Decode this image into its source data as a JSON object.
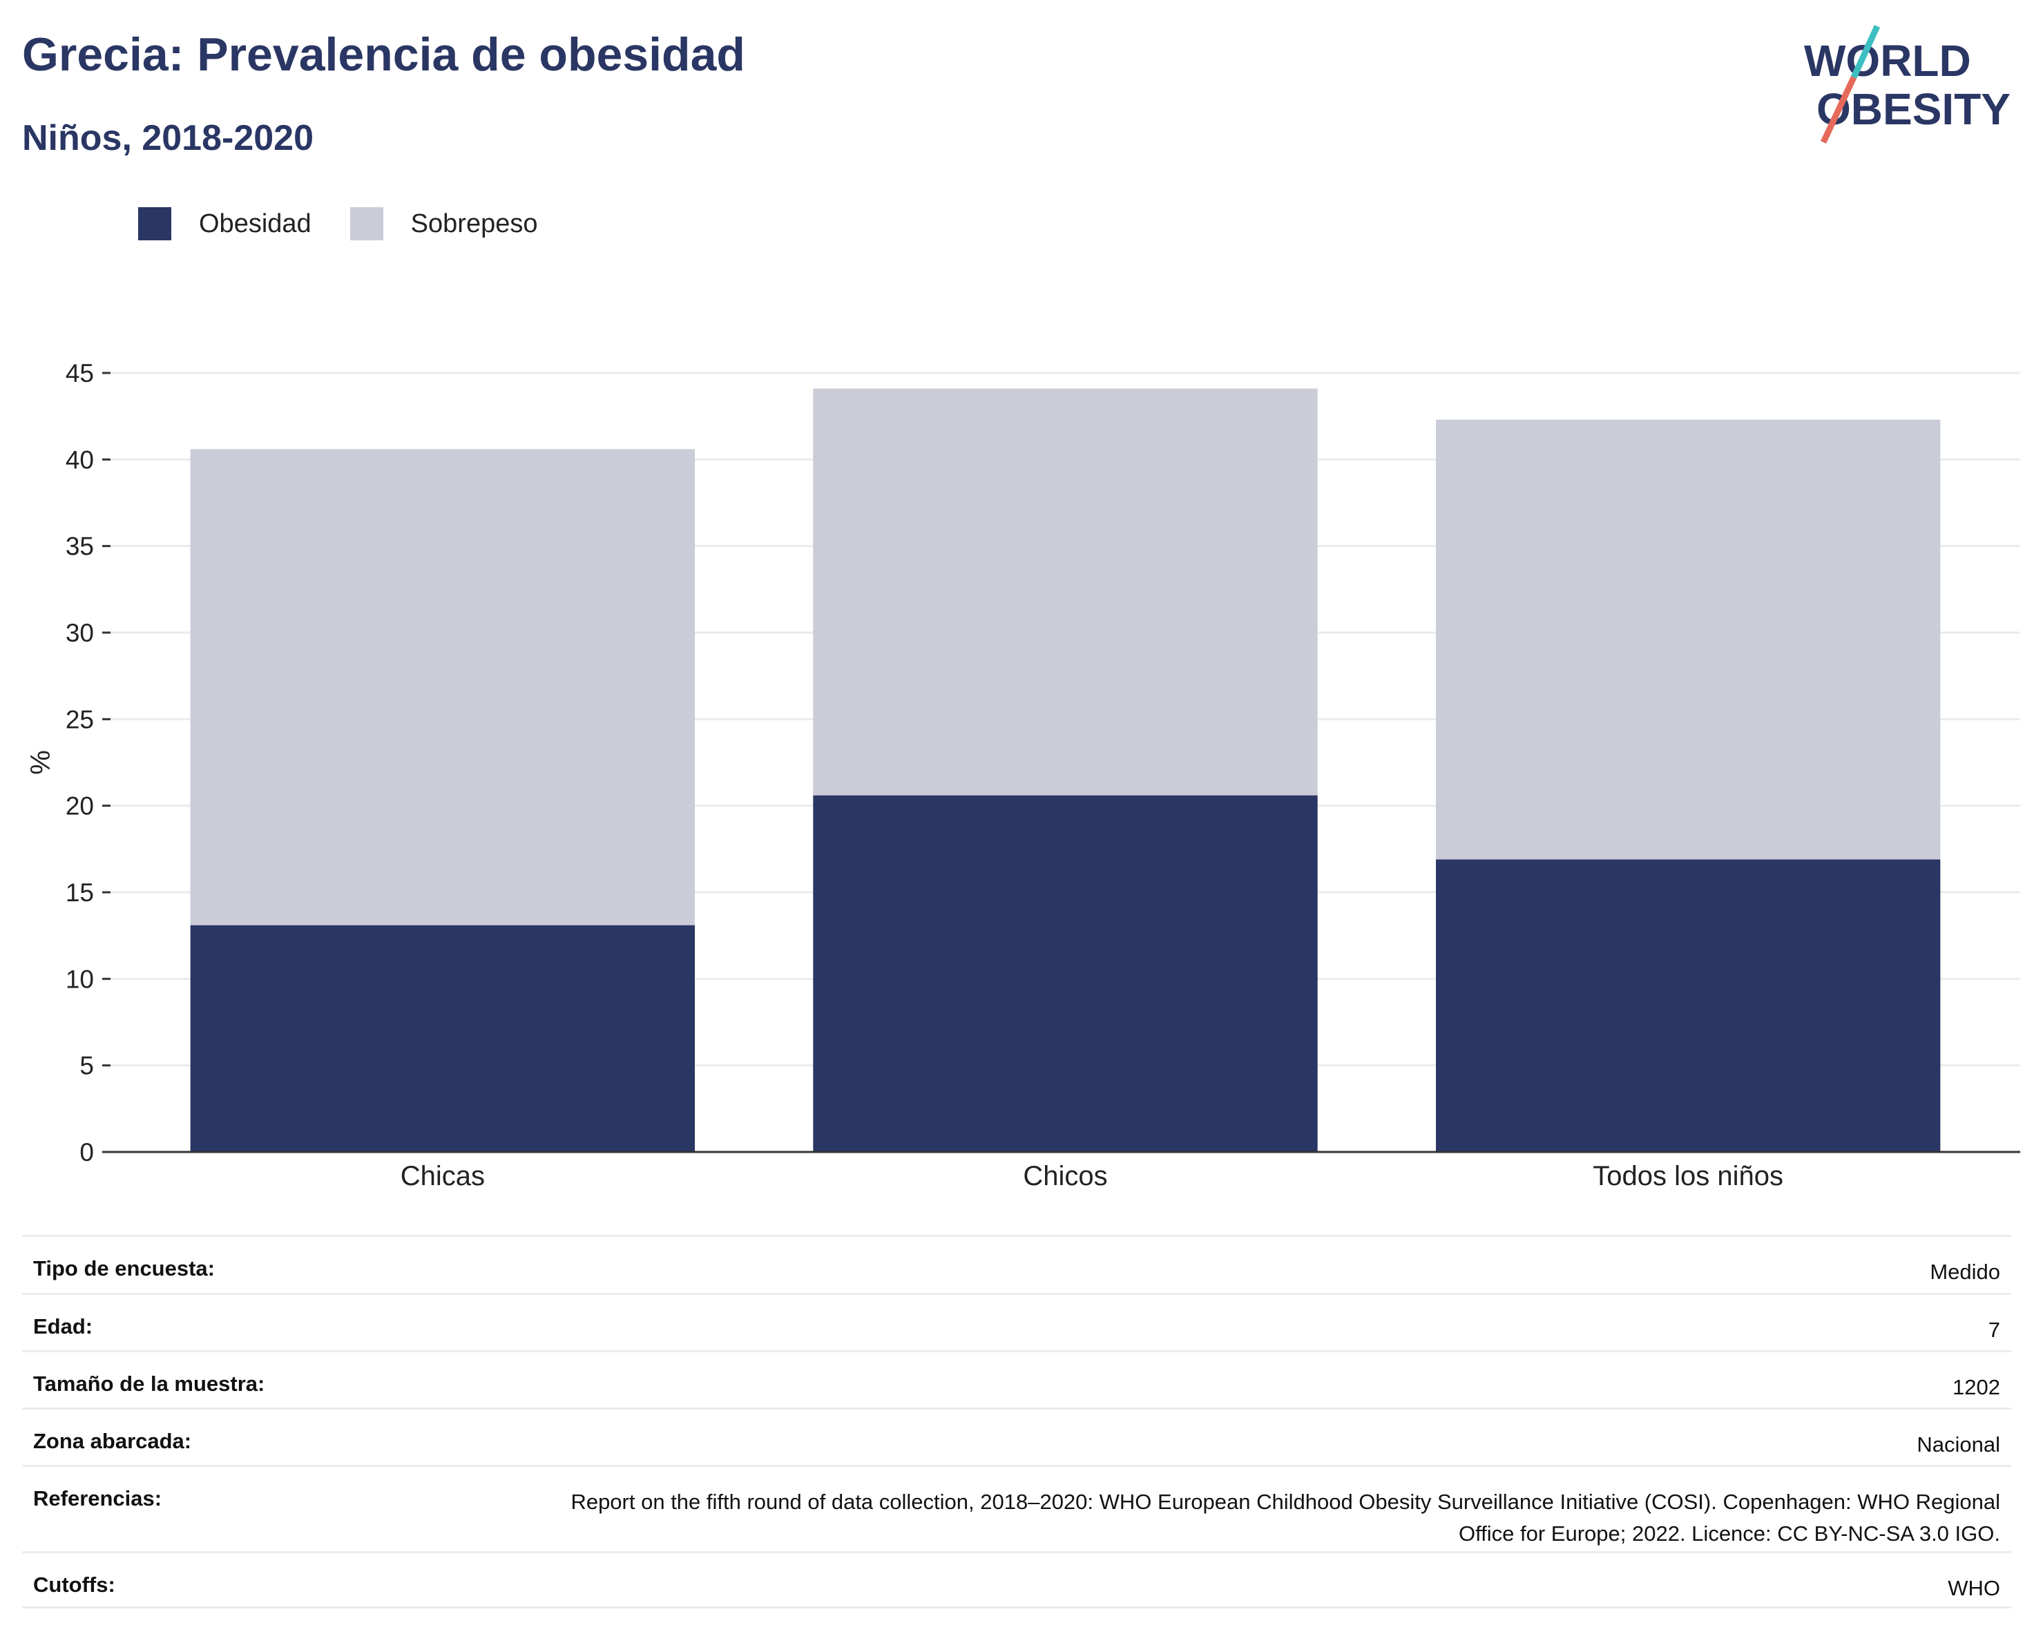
{
  "header": {
    "title": "Grecia: Prevalencia de obesidad",
    "subtitle": "Niños, 2018-2020"
  },
  "logo": {
    "line1": "WORLD",
    "line2": "OBESITY"
  },
  "colors": {
    "obesity": "#2a3663",
    "overweight": "#caccd8",
    "text": "#2a3663",
    "logo_teal": "#3dbfc1",
    "logo_coral": "#e56a5a"
  },
  "chart_data": {
    "type": "bar",
    "stacked": true,
    "categories": [
      "Chicas",
      "Chicos",
      "Todos los niños"
    ],
    "series": [
      {
        "name": "Obesidad",
        "values": [
          13.1,
          20.6,
          16.9
        ],
        "color": "#2a3663"
      },
      {
        "name": "Sobrepeso",
        "values": [
          27.5,
          23.5,
          25.4
        ],
        "color": "#caccd8"
      }
    ],
    "ylabel": "%",
    "ylim": [
      0,
      45
    ],
    "yticks": [
      0,
      5,
      10,
      15,
      20,
      25,
      30,
      35,
      40,
      45
    ],
    "grid": true,
    "legend": "top-left"
  },
  "meta": [
    {
      "label": "Tipo de encuesta:",
      "value": "Medido"
    },
    {
      "label": "Edad:",
      "value": "7"
    },
    {
      "label": "Tamaño de la muestra:",
      "value": "1202"
    },
    {
      "label": "Zona abarcada:",
      "value": "Nacional"
    },
    {
      "label": "Referencias:",
      "value": "Report on the fifth round of data collection, 2018–2020: WHO European Childhood Obesity Surveillance Initiative (COSI). Copenhagen: WHO Regional Office for Europe; 2022. Licence: CC BY-NC-SA 3.0 IGO."
    },
    {
      "label": "Cutoffs:",
      "value": "WHO"
    }
  ]
}
